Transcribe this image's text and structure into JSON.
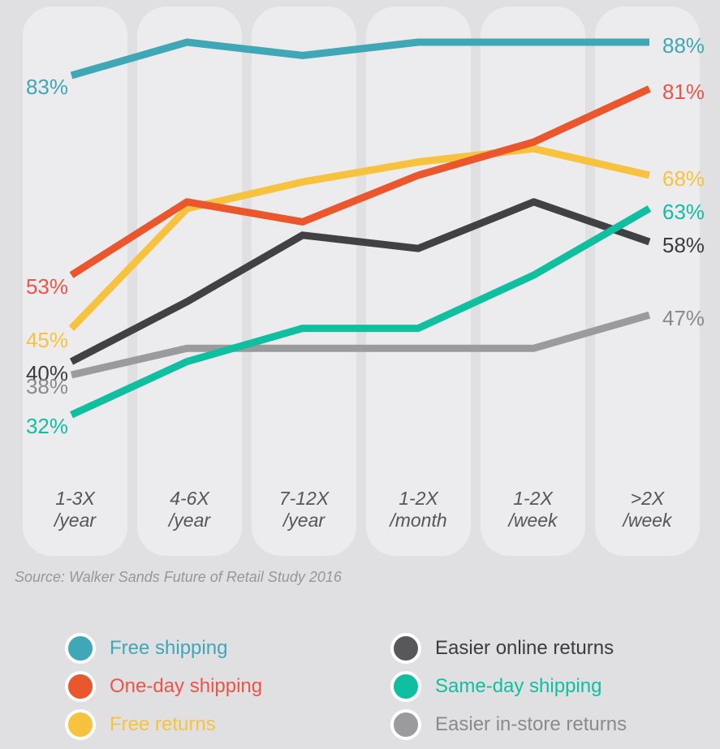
{
  "chart_data": {
    "type": "line",
    "categories": [
      {
        "label": "1-3X",
        "sublabel": "/year"
      },
      {
        "label": "4-6X",
        "sublabel": "/year"
      },
      {
        "label": "7-12X",
        "sublabel": "/year"
      },
      {
        "label": "1-2X",
        "sublabel": "/month"
      },
      {
        "label": "1-2X",
        "sublabel": "/week"
      },
      {
        "label": ">2X",
        "sublabel": "/week"
      }
    ],
    "series": [
      {
        "name": "Free shipping",
        "slug": "free-shipping",
        "color": "#3FA7B6",
        "values": [
          83,
          88,
          86,
          88,
          88,
          88
        ],
        "start_label": "83%",
        "end_label": "88%"
      },
      {
        "name": "One-day shipping",
        "slug": "one-day-shipping",
        "color": "#EA572C",
        "label_color": "#ED5347",
        "values": [
          53,
          64,
          61,
          68,
          73,
          81
        ],
        "start_label": "53%",
        "end_label": "81%"
      },
      {
        "name": "Free returns",
        "slug": "free-returns",
        "color": "#F7C23D",
        "values": [
          45,
          63,
          67,
          70,
          72,
          68
        ],
        "start_label": "45%",
        "end_label": "68%"
      },
      {
        "name": "Easier online returns",
        "slug": "easier-online-returns",
        "color": "#414144",
        "swatch_color": "#58585A",
        "label_color": "#3C3C3F",
        "values": [
          40,
          49,
          59,
          57,
          64,
          58
        ],
        "start_label": "40%",
        "end_label": "58%"
      },
      {
        "name": "Same-day shipping",
        "slug": "same-day-shipping",
        "color": "#0FBFA0",
        "values": [
          32,
          40,
          45,
          45,
          53,
          63
        ],
        "start_label": "32%",
        "end_label": "63%"
      },
      {
        "name": "Easier in-store returns",
        "slug": "easier-in-store-returns",
        "color": "#9B9B9E",
        "label_color": "#8A8A8E",
        "values": [
          38,
          42,
          42,
          42,
          42,
          47
        ],
        "start_label": "38%",
        "end_label": "47%"
      }
    ],
    "xlabel": "",
    "ylabel": "",
    "yaxis_visible": false,
    "grid": false,
    "legend_position": "bottom"
  },
  "source": "Source: Walker Sands Future of Retail Study 2016",
  "colors": {
    "page_background": "#E0E0E2",
    "column_background": "#ECECEE",
    "axis_label": "#55555A",
    "source_text": "#97979B",
    "legend_ring": "#FFFFFF"
  }
}
